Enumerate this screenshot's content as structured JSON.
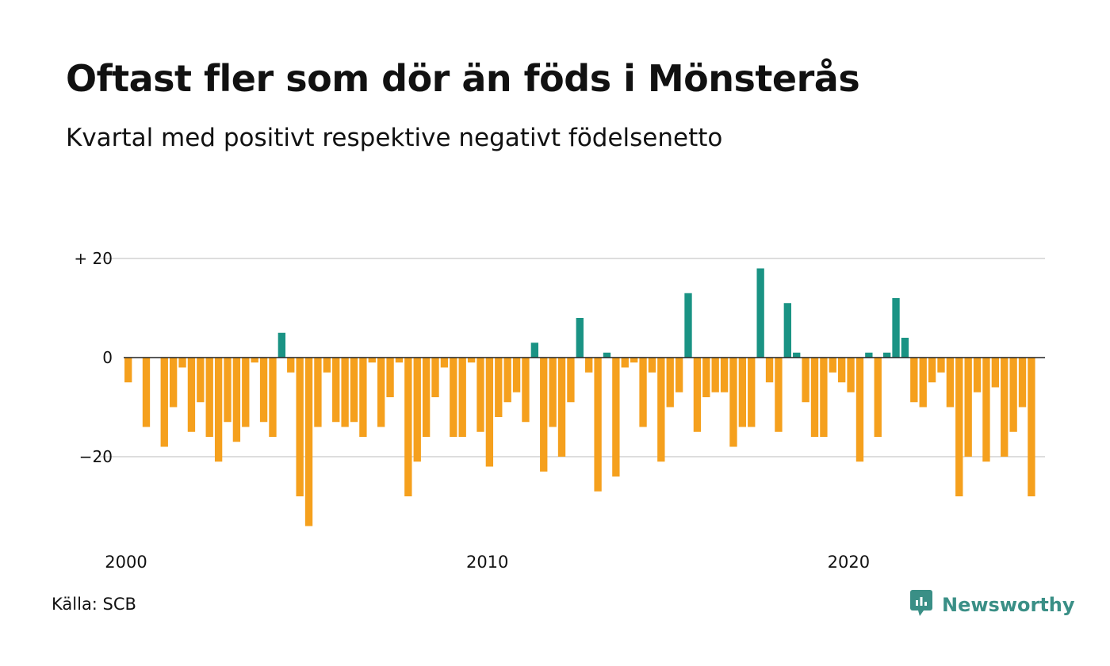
{
  "header": {
    "title": "Oftast fler som dör än föds i Mönsterås",
    "subtitle": "Kvartal med positivt respektive negativt födelsenetto"
  },
  "footer": {
    "source": "Källa: SCB",
    "brand": "Newsworthy",
    "brand_icon": "newsworthy-logo-icon"
  },
  "colors": {
    "positive": "#1a9384",
    "negative": "#f5a01d",
    "grid": "#dddddd",
    "zero_line": "#222222"
  },
  "chart_data": {
    "type": "bar",
    "title": "Oftast fler som dör än föds i Mönsterås",
    "subtitle": "Kvartal med positivt respektive negativt födelsenetto",
    "xlabel": "",
    "ylabel": "",
    "ylim": [
      -35,
      20
    ],
    "y_ticks": [
      20,
      0,
      -20
    ],
    "y_tick_labels": [
      "+ 20",
      "0",
      "−20"
    ],
    "x_tick_labels": [
      "2000",
      "2010",
      "2020"
    ],
    "x_tick_years": [
      2000,
      2010,
      2020
    ],
    "start": "2000 Q1",
    "end": "2025 Q2",
    "grid": true,
    "legend": false,
    "categories": [
      "2000 Q1",
      "2000 Q2",
      "2000 Q3",
      "2000 Q4",
      "2001 Q1",
      "2001 Q2",
      "2001 Q3",
      "2001 Q4",
      "2002 Q1",
      "2002 Q2",
      "2002 Q3",
      "2002 Q4",
      "2003 Q1",
      "2003 Q2",
      "2003 Q3",
      "2003 Q4",
      "2004 Q1",
      "2004 Q2",
      "2004 Q3",
      "2004 Q4",
      "2005 Q1",
      "2005 Q2",
      "2005 Q3",
      "2005 Q4",
      "2006 Q1",
      "2006 Q2",
      "2006 Q3",
      "2006 Q4",
      "2007 Q1",
      "2007 Q2",
      "2007 Q3",
      "2007 Q4",
      "2008 Q1",
      "2008 Q2",
      "2008 Q3",
      "2008 Q4",
      "2009 Q1",
      "2009 Q2",
      "2009 Q3",
      "2009 Q4",
      "2010 Q1",
      "2010 Q2",
      "2010 Q3",
      "2010 Q4",
      "2011 Q1",
      "2011 Q2",
      "2011 Q3",
      "2011 Q4",
      "2012 Q1",
      "2012 Q2",
      "2012 Q3",
      "2012 Q4",
      "2013 Q1",
      "2013 Q2",
      "2013 Q3",
      "2013 Q4",
      "2014 Q1",
      "2014 Q2",
      "2014 Q3",
      "2014 Q4",
      "2015 Q1",
      "2015 Q2",
      "2015 Q3",
      "2015 Q4",
      "2016 Q1",
      "2016 Q2",
      "2016 Q3",
      "2016 Q4",
      "2017 Q1",
      "2017 Q2",
      "2017 Q3",
      "2017 Q4",
      "2018 Q1",
      "2018 Q2",
      "2018 Q3",
      "2018 Q4",
      "2019 Q1",
      "2019 Q2",
      "2019 Q3",
      "2019 Q4",
      "2020 Q1",
      "2020 Q2",
      "2020 Q3",
      "2020 Q4",
      "2021 Q1",
      "2021 Q2",
      "2021 Q3",
      "2021 Q4",
      "2022 Q1",
      "2022 Q2",
      "2022 Q3",
      "2022 Q4",
      "2023 Q1",
      "2023 Q2",
      "2023 Q3",
      "2023 Q4",
      "2024 Q1",
      "2024 Q2",
      "2024 Q3",
      "2024 Q4",
      "2025 Q1",
      "2025 Q2"
    ],
    "values": [
      -5,
      0,
      -14,
      0,
      -18,
      -10,
      -2,
      -15,
      -9,
      -16,
      -21,
      -13,
      -17,
      -14,
      -1,
      -13,
      -16,
      5,
      -3,
      -28,
      -34,
      -14,
      -3,
      -13,
      -14,
      -13,
      -16,
      -1,
      -14,
      -8,
      -1,
      -28,
      -21,
      -16,
      -8,
      -2,
      -16,
      -16,
      -1,
      -15,
      -22,
      -12,
      -9,
      -7,
      -13,
      3,
      -23,
      -14,
      -20,
      -9,
      8,
      -3,
      -27,
      1,
      -24,
      -2,
      -1,
      -14,
      -3,
      -21,
      -10,
      -7,
      13,
      -15,
      -8,
      -7,
      -7,
      -18,
      -14,
      -14,
      18,
      -5,
      -15,
      11,
      1,
      -9,
      -16,
      -16,
      -3,
      -5,
      -7,
      -21,
      1,
      -16,
      1,
      12,
      4,
      -9,
      -10,
      -5,
      -3,
      -10,
      -28,
      -20,
      -7,
      -21,
      -6,
      -20,
      -15,
      -10,
      -28,
      0
    ]
  }
}
